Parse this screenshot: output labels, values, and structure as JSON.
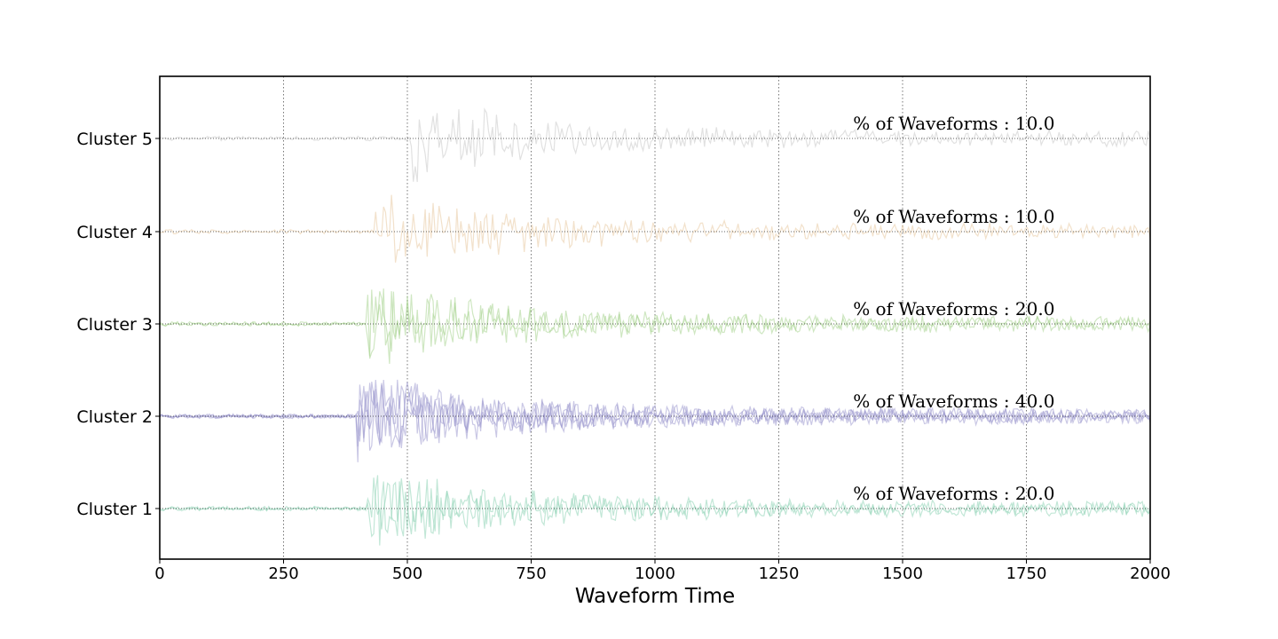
{
  "chart_data": {
    "type": "line",
    "title": "",
    "xlabel": "Waveform Time",
    "ylabel": "",
    "xlim": [
      0,
      2000
    ],
    "xticks": [
      "0",
      "250",
      "500",
      "750",
      "1000",
      "1250",
      "1500",
      "1750",
      "2000"
    ],
    "grid": true,
    "rows": [
      {
        "label": "Cluster 1",
        "color": "#8fd3b6",
        "percent_text": "% of Waveforms : 20.0",
        "onset": 420,
        "traces": 2
      },
      {
        "label": "Cluster 2",
        "color": "#9f9bd0",
        "percent_text": "% of Waveforms : 40.0",
        "onset": 400,
        "traces": 4
      },
      {
        "label": "Cluster 3",
        "color": "#a8d48f",
        "percent_text": "% of Waveforms : 20.0",
        "onset": 420,
        "traces": 2
      },
      {
        "label": "Cluster 4",
        "color": "#e8c9a0",
        "percent_text": "% of Waveforms : 10.0",
        "onset": 435,
        "traces": 1
      },
      {
        "label": "Cluster 5",
        "color": "#c8c8c8",
        "percent_text": "% of Waveforms : 10.0",
        "onset": 500,
        "traces": 1
      }
    ]
  }
}
